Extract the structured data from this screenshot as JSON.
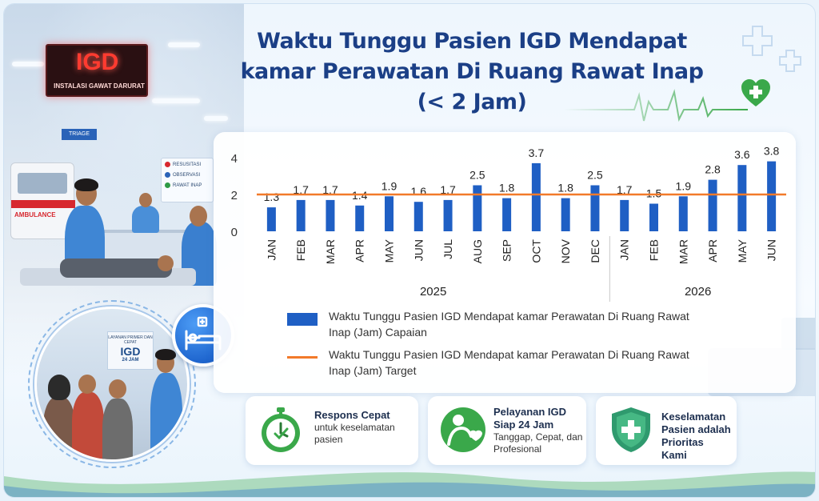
{
  "title": {
    "line1": "Waktu Tunggu Pasien IGD Mendapat",
    "line2": "kamar Perawatan Di Ruang Rawat Inap",
    "line3": "(< 2 Jam)"
  },
  "photo": {
    "sign_main": "IGD",
    "sign_sub": "INSTALASI GAWAT DARURAT",
    "triage": "TRIAGE",
    "wall_sign": [
      "RESUSITASI",
      "OBSERVASI",
      "RAWAT INAP"
    ],
    "ambulance": "AMBULANCE",
    "circle_sign_l1": "LAYANAN PRIMER DAN CEPAT",
    "circle_sign_l2": "IGD",
    "circle_sign_l3": "24 JAM"
  },
  "chart_data": {
    "type": "bar",
    "categories": [
      "JAN",
      "FEB",
      "MAR",
      "APR",
      "MAY",
      "JUN",
      "JUL",
      "AUG",
      "SEP",
      "OCT",
      "NOV",
      "DEC",
      "JAN",
      "FEB",
      "MAR",
      "APR",
      "MAY",
      "JUN"
    ],
    "groups": [
      {
        "label": "2025",
        "count": 12
      },
      {
        "label": "2026",
        "count": 6
      }
    ],
    "series": [
      {
        "name": "Waktu Tunggu Pasien IGD Mendapat kamar Perawatan Di Ruang Rawat Inap (Jam) Capaian",
        "type": "bar",
        "values": [
          1.3,
          1.7,
          1.7,
          1.4,
          1.9,
          1.6,
          1.7,
          2.5,
          1.8,
          3.7,
          1.8,
          2.5,
          1.7,
          1.5,
          1.9,
          2.8,
          3.6,
          3.8
        ],
        "labels": [
          "1.3",
          "1.7",
          "1.7",
          "1.4",
          "1.9",
          "1.6",
          "1.7",
          "2.5",
          "1.8",
          "3.7",
          "1.8",
          "2.5",
          "1.7",
          "1.5",
          "1.9",
          "2.8",
          "3.6",
          "3.8"
        ],
        "color": "#1f5fc4"
      },
      {
        "name": "Waktu Tunggu Pasien IGD Mendapat kamar Perawatan Di Ruang Rawat Inap (Jam) Target",
        "type": "line",
        "value": 2,
        "color": "#f27a2a"
      }
    ],
    "ylim": [
      0,
      4
    ],
    "yticks": [
      "0",
      "2",
      "4"
    ],
    "grid": false,
    "legend": "bottom"
  },
  "cards": [
    {
      "title": "Respons Cepat",
      "text": "untuk keselamatan pasien",
      "icon": "stopwatch-icon"
    },
    {
      "title": "Pelayanan IGD Siap 24 Jam",
      "text": "Tanggap, Cepat, dan Profesional",
      "icon": "mother-child-icon"
    },
    {
      "title": "Keselamatan Pasien adalah Prioritas Kami",
      "text": "",
      "icon": "shield-cross-icon"
    }
  ],
  "colors": {
    "title": "#1b3f86",
    "bar": "#1f5fc4",
    "target": "#f27a2a",
    "green": "#3aa84a"
  }
}
